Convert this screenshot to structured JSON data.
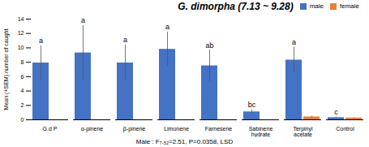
{
  "chart_data": {
    "type": "bar",
    "title": "G. dimorpha (7.13 ~ 9.28)",
    "ylabel": "Mean (+SEM) number of caught",
    "footnote": "Male : F₇.₅₂=2.51, P=0.0358, LSD",
    "categories": [
      "G.d P",
      "α-pinene",
      "β-pinene",
      "Limonene",
      "Farnesene",
      "Sabinene\nhydrate",
      "Terpinyl\nacetate",
      "Control"
    ],
    "series": [
      {
        "name": "male",
        "color": "#4472C4",
        "values": [
          7.9,
          9.3,
          7.9,
          9.8,
          7.5,
          1.1,
          8.3,
          0.3
        ],
        "errors": [
          2.4,
          3.8,
          2.5,
          2.4,
          2.2,
          0.3,
          1.8,
          0.1
        ],
        "letters": [
          "a",
          "a",
          "a",
          "a",
          "ab",
          "bc",
          "a",
          "c"
        ]
      },
      {
        "name": "female",
        "color": "#ED7D31",
        "values": [
          0,
          0,
          0,
          0,
          0,
          0,
          0.4,
          0.25
        ],
        "errors": [
          0,
          0,
          0,
          0,
          0,
          0,
          0.08,
          0.04
        ]
      }
    ],
    "ylim": [
      0,
      14
    ],
    "yticks": [
      0,
      2,
      4,
      6,
      8,
      10,
      12,
      14
    ],
    "legend": "upper right",
    "grid": false
  }
}
